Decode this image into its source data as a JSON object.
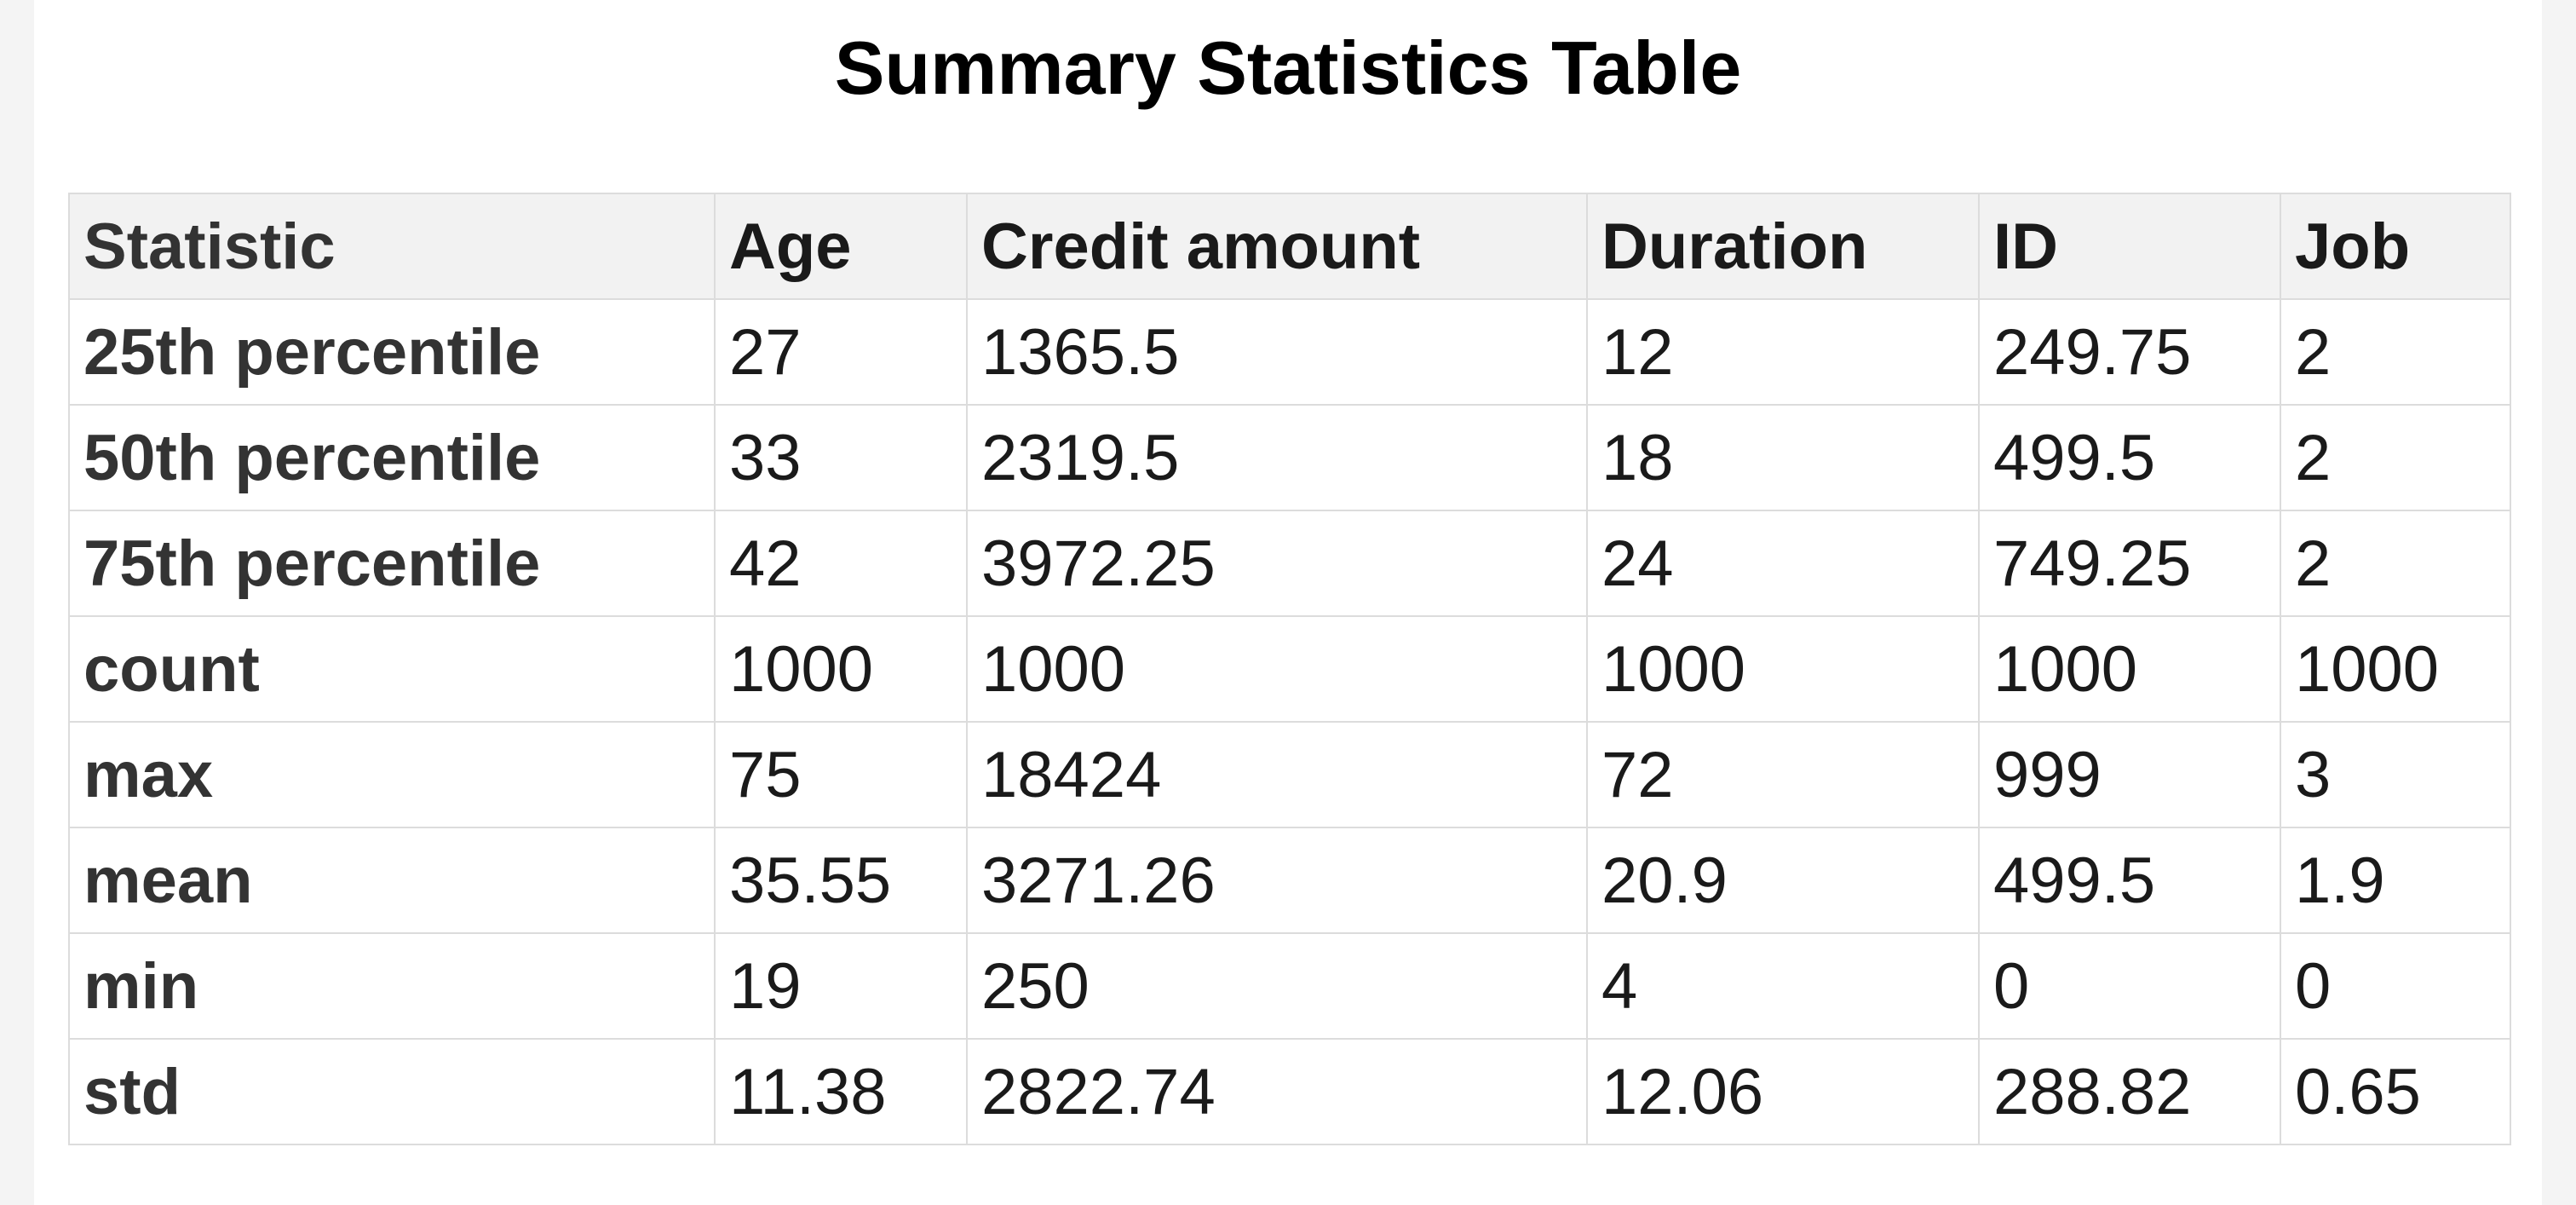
{
  "title": "Summary Statistics Table",
  "table": {
    "headers": [
      "Statistic",
      "Age",
      "Credit amount",
      "Duration",
      "ID",
      "Job"
    ],
    "rows": [
      [
        "25th percentile",
        "27",
        "1365.5",
        "12",
        "249.75",
        "2"
      ],
      [
        "50th percentile",
        "33",
        "2319.5",
        "18",
        "499.5",
        "2"
      ],
      [
        "75th percentile",
        "42",
        "3972.25",
        "24",
        "749.25",
        "2"
      ],
      [
        "count",
        "1000",
        "1000",
        "1000",
        "1000",
        "1000"
      ],
      [
        "max",
        "75",
        "18424",
        "72",
        "999",
        "3"
      ],
      [
        "mean",
        "35.55",
        "3271.26",
        "20.9",
        "499.5",
        "1.9"
      ],
      [
        "min",
        "19",
        "250",
        "4",
        "0",
        "0"
      ],
      [
        "std",
        "11.38",
        "2822.74",
        "12.06",
        "288.82",
        "0.65"
      ]
    ]
  },
  "colors": {
    "header_background": "#f2f2f2",
    "border": "#dcdcdc",
    "page_background": "#f4f4f4"
  }
}
